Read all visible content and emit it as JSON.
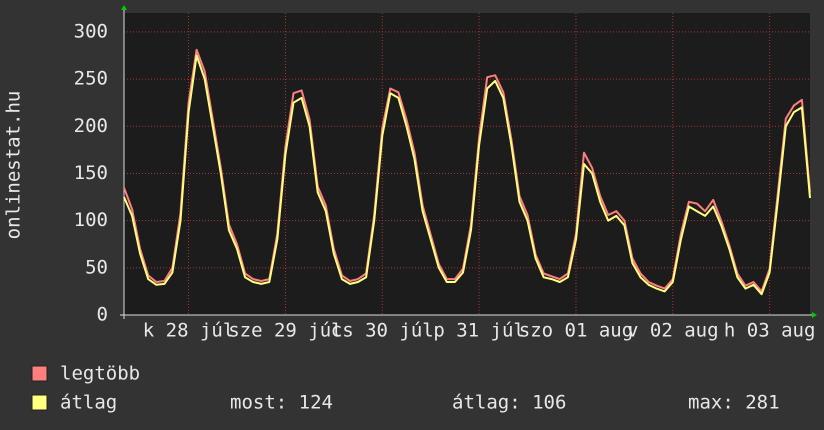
{
  "chart_data": {
    "type": "line",
    "ylabel": "onlinestat.hu",
    "x": [
      0,
      2,
      4,
      6,
      8,
      10,
      12,
      14,
      16,
      18,
      20,
      22,
      24,
      26,
      28,
      30,
      32,
      34,
      36,
      38,
      40,
      42,
      44,
      46,
      48,
      50,
      52,
      54,
      56,
      58,
      60,
      62,
      64,
      66,
      68,
      70,
      72,
      74,
      76,
      78,
      80,
      82,
      84,
      86,
      88,
      90,
      92,
      94,
      96,
      98,
      100,
      102,
      104,
      106,
      108,
      110,
      112,
      114,
      116,
      118,
      120,
      122,
      124,
      126,
      128,
      130,
      132,
      134,
      136,
      138,
      140,
      142,
      144,
      146,
      148,
      150,
      152,
      154,
      156,
      158,
      160,
      162,
      164,
      166,
      168,
      170
    ],
    "series": [
      {
        "name": "legtöbb",
        "color": "#ff7f7f",
        "values": [
          135,
          112,
          70,
          42,
          35,
          36,
          50,
          108,
          225,
          281,
          258,
          207,
          156,
          96,
          75,
          44,
          38,
          36,
          38,
          86,
          178,
          235,
          238,
          207,
          136,
          116,
          70,
          42,
          36,
          38,
          44,
          106,
          198,
          240,
          236,
          207,
          172,
          116,
          85,
          54,
          38,
          38,
          49,
          96,
          188,
          252,
          254,
          236,
          186,
          126,
          106,
          64,
          44,
          41,
          38,
          44,
          86,
          172,
          156,
          126,
          106,
          110,
          100,
          60,
          44,
          35,
          31,
          28,
          38,
          86,
          120,
          118,
          110,
          122,
          100,
          74,
          44,
          31,
          35,
          25,
          49,
          128,
          208,
          222,
          228,
          130
        ]
      },
      {
        "name": "átlag",
        "color": "#ffff80",
        "values": [
          125,
          105,
          65,
          38,
          32,
          33,
          45,
          100,
          215,
          275,
          250,
          200,
          150,
          90,
          70,
          40,
          35,
          33,
          35,
          80,
          170,
          225,
          230,
          200,
          130,
          110,
          65,
          38,
          33,
          35,
          40,
          100,
          190,
          235,
          230,
          200,
          165,
          110,
          80,
          50,
          35,
          35,
          45,
          90,
          180,
          240,
          248,
          230,
          180,
          120,
          100,
          60,
          40,
          38,
          35,
          40,
          80,
          160,
          150,
          120,
          100,
          105,
          95,
          55,
          40,
          32,
          28,
          25,
          35,
          80,
          115,
          110,
          105,
          115,
          95,
          70,
          40,
          28,
          32,
          22,
          45,
          120,
          200,
          215,
          220,
          124
        ]
      }
    ],
    "xlim": [
      0,
      170
    ],
    "xticks": [
      {
        "value": 16,
        "label": "k 28 júl"
      },
      {
        "value": 40,
        "label": "sze 29 júl"
      },
      {
        "value": 64,
        "label": "cs 30 júl"
      },
      {
        "value": 88,
        "label": "p 31 júl"
      },
      {
        "value": 112,
        "label": "szo 01 aug"
      },
      {
        "value": 136,
        "label": "v 02 aug"
      },
      {
        "value": 160,
        "label": "h 03 aug"
      }
    ],
    "ylim": [
      0,
      320
    ],
    "yticks": [
      0,
      50,
      100,
      150,
      200,
      250,
      300
    ],
    "grid": true,
    "stats": [
      "most: 124",
      "átlag: 106",
      "max: 281"
    ]
  }
}
